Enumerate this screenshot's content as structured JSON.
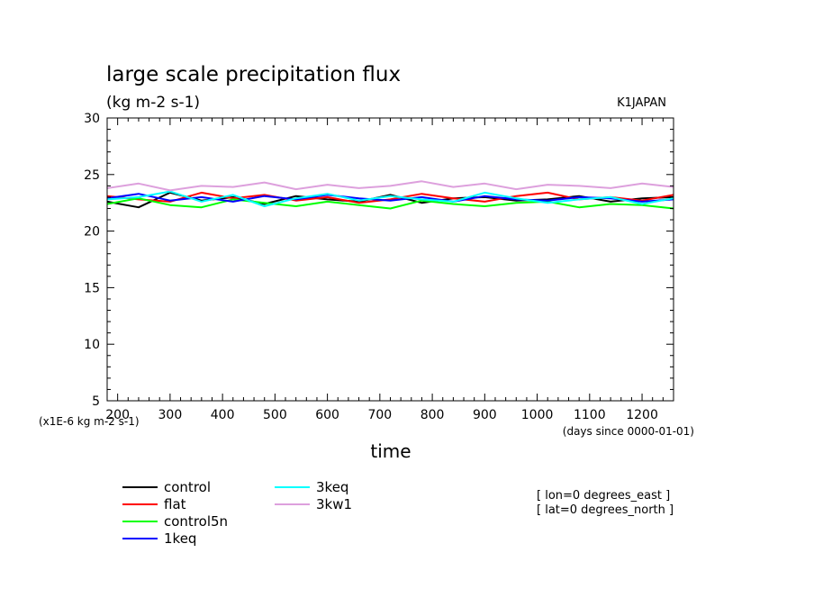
{
  "chart_data": {
    "type": "line",
    "title": "large scale precipitation flux",
    "subtitle": "(kg m-2 s-1)",
    "model_label": "K1JAPAN",
    "xlabel": "time",
    "x_units": "(days since 0000-01-01)",
    "y_units": "(x1E-6 kg m-2 s-1)",
    "xlim": [
      180,
      1260
    ],
    "ylim": [
      5,
      30
    ],
    "x_ticks": [
      200,
      300,
      400,
      500,
      600,
      700,
      800,
      900,
      1000,
      1100,
      1200
    ],
    "y_ticks": [
      5,
      10,
      15,
      20,
      25,
      30
    ],
    "grid": false,
    "legend_position": "bottom-left",
    "annotations": [
      "[ lon=0 degrees_east ]",
      "[ lat=0 degrees_north ]"
    ],
    "series": [
      {
        "name": "control",
        "color": "#000000",
        "x": [
          180,
          240,
          300,
          360,
          420,
          480,
          540,
          600,
          660,
          720,
          780,
          840,
          900,
          960,
          1020,
          1080,
          1140,
          1200,
          1260
        ],
        "y": [
          22.6,
          22.1,
          23.4,
          22.7,
          23.0,
          22.4,
          23.1,
          22.8,
          22.6,
          23.2,
          22.5,
          22.9,
          23.0,
          22.7,
          22.8,
          23.1,
          22.6,
          22.9,
          23.0
        ]
      },
      {
        "name": "flat",
        "color": "#ff0000",
        "x": [
          180,
          240,
          300,
          360,
          420,
          480,
          540,
          600,
          660,
          720,
          780,
          840,
          900,
          960,
          1020,
          1080,
          1140,
          1200,
          1260
        ],
        "y": [
          23.1,
          22.8,
          22.6,
          23.4,
          22.9,
          23.2,
          22.7,
          23.0,
          22.5,
          22.8,
          23.3,
          22.9,
          22.6,
          23.1,
          23.4,
          22.8,
          23.0,
          22.7,
          23.2
        ]
      },
      {
        "name": "control5n",
        "color": "#00ff00",
        "x": [
          180,
          240,
          300,
          360,
          420,
          480,
          540,
          600,
          660,
          720,
          780,
          840,
          900,
          960,
          1020,
          1080,
          1140,
          1200,
          1260
        ],
        "y": [
          22.4,
          22.9,
          22.3,
          22.1,
          22.8,
          22.5,
          22.2,
          22.6,
          22.3,
          22.0,
          22.7,
          22.4,
          22.2,
          22.5,
          22.6,
          22.1,
          22.4,
          22.3,
          22.0
        ]
      },
      {
        "name": "1keq",
        "color": "#0000ff",
        "x": [
          180,
          240,
          300,
          360,
          420,
          480,
          540,
          600,
          660,
          720,
          780,
          840,
          900,
          960,
          1020,
          1080,
          1140,
          1200,
          1260
        ],
        "y": [
          22.9,
          23.3,
          22.7,
          23.0,
          22.6,
          23.1,
          22.8,
          23.2,
          22.9,
          22.7,
          23.0,
          22.6,
          23.1,
          22.8,
          22.7,
          23.0,
          22.9,
          22.6,
          22.8
        ]
      },
      {
        "name": "3keq",
        "color": "#00ffff",
        "x": [
          180,
          240,
          300,
          360,
          420,
          480,
          540,
          600,
          660,
          720,
          780,
          840,
          900,
          960,
          1020,
          1080,
          1140,
          1200,
          1260
        ],
        "y": [
          22.8,
          23.0,
          23.5,
          22.6,
          23.2,
          22.2,
          22.9,
          23.3,
          22.7,
          23.1,
          22.8,
          22.6,
          23.4,
          22.9,
          22.5,
          22.8,
          23.0,
          22.4,
          22.9
        ]
      },
      {
        "name": "3kw1",
        "color": "#dda0dd",
        "x": [
          180,
          240,
          300,
          360,
          420,
          480,
          540,
          600,
          660,
          720,
          780,
          840,
          900,
          960,
          1020,
          1080,
          1140,
          1200,
          1260
        ],
        "y": [
          23.8,
          24.2,
          23.6,
          24.0,
          23.9,
          24.3,
          23.7,
          24.1,
          23.8,
          24.0,
          24.4,
          23.9,
          24.2,
          23.7,
          24.1,
          24.0,
          23.8,
          24.2,
          23.9
        ]
      }
    ]
  }
}
